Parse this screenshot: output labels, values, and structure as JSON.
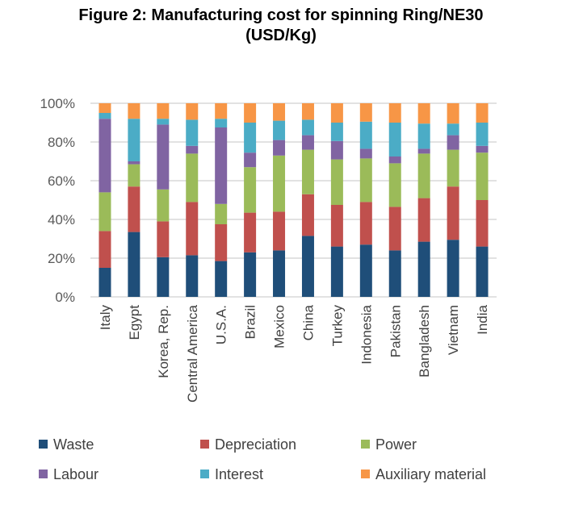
{
  "chart_data": {
    "type": "bar",
    "stacked": "percent",
    "title": "Figure 2: Manufacturing cost for spinning Ring/NE30",
    "subtitle": "(USD/Kg)",
    "xlabel": "",
    "ylabel": "",
    "ylim": [
      0,
      100
    ],
    "yticks": [
      "0%",
      "20%",
      "40%",
      "60%",
      "80%",
      "100%"
    ],
    "grid": true,
    "legend_placement": "bottom",
    "categories": [
      "Italy",
      "Egypt",
      "Korea, Rep.",
      "Central America",
      "U.S.A.",
      "Brazil",
      "Mexico",
      "China",
      "Turkey",
      "Indonesia",
      "Pakistan",
      "Bangladesh",
      "Vietnam",
      "India"
    ],
    "series": [
      {
        "name": "Waste",
        "color": "#1f4e79",
        "values": [
          15,
          33.5,
          20.5,
          21.5,
          18.5,
          23,
          24,
          31.5,
          26,
          27,
          24,
          28.5,
          29.5,
          26
        ]
      },
      {
        "name": "Depreciation",
        "color": "#c0504d",
        "values": [
          19,
          23.5,
          18.5,
          27.5,
          19,
          20.5,
          20,
          21.5,
          21.5,
          22,
          22.5,
          22.5,
          27.5,
          24
        ]
      },
      {
        "name": "Power",
        "color": "#9bbb59",
        "values": [
          20,
          11.5,
          16.5,
          25,
          10.5,
          23.5,
          29,
          23,
          23.5,
          22.5,
          22.5,
          23,
          19,
          24.5
        ]
      },
      {
        "name": "Labour",
        "color": "#8064a2",
        "values": [
          38,
          1.5,
          33.5,
          4,
          39.5,
          7.5,
          8,
          7.5,
          9.5,
          5,
          3.5,
          2.5,
          7.5,
          3.5
        ]
      },
      {
        "name": "Interest",
        "color": "#4bacc6",
        "values": [
          3,
          22,
          3,
          13.5,
          4.5,
          15.5,
          10,
          8,
          9.5,
          14,
          17.5,
          13,
          6,
          12
        ]
      },
      {
        "name": "Auxiliary material",
        "color": "#f79646",
        "values": [
          5,
          8,
          8,
          8.5,
          8,
          10,
          9,
          8.5,
          10,
          9.5,
          10,
          10.5,
          10.5,
          10
        ]
      }
    ]
  }
}
